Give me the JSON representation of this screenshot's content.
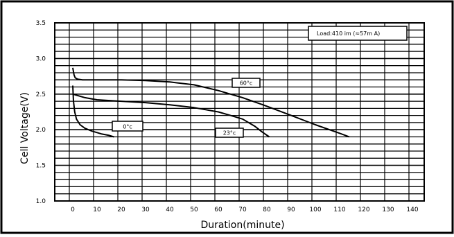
{
  "chart_data": {
    "type": "line",
    "xlabel": "Duration(minute)",
    "ylabel": "Cell Voltage(V)",
    "xlim": [
      0,
      140
    ],
    "ylim": [
      1.0,
      3.5
    ],
    "x_ticks": [
      0,
      10,
      20,
      30,
      40,
      50,
      60,
      70,
      80,
      90,
      100,
      110,
      120,
      130,
      140
    ],
    "y_ticks": [
      1.0,
      1.5,
      2.0,
      2.5,
      3.0,
      3.5
    ],
    "grid": true,
    "legend_text": "Load:410 im (≈57m A)",
    "series": [
      {
        "name": "60°c",
        "x": [
          0,
          0.5,
          1,
          2,
          4,
          10,
          20,
          30,
          40,
          50,
          60,
          70,
          80,
          90,
          100,
          110,
          114
        ],
        "y": [
          2.87,
          2.77,
          2.73,
          2.71,
          2.7,
          2.7,
          2.7,
          2.69,
          2.67,
          2.63,
          2.55,
          2.45,
          2.33,
          2.2,
          2.07,
          1.95,
          1.9
        ]
      },
      {
        "name": "23°c",
        "x": [
          0,
          5,
          10,
          20,
          30,
          40,
          50,
          60,
          65,
          70,
          75,
          78,
          81
        ],
        "y": [
          2.5,
          2.45,
          2.42,
          2.4,
          2.38,
          2.35,
          2.31,
          2.25,
          2.2,
          2.15,
          2.05,
          1.97,
          1.9
        ]
      },
      {
        "name": "0°c",
        "x": [
          0,
          0.3,
          0.8,
          1.5,
          3,
          5,
          8,
          10,
          12,
          15,
          17
        ],
        "y": [
          2.62,
          2.4,
          2.25,
          2.15,
          2.07,
          2.02,
          1.98,
          1.96,
          1.94,
          1.92,
          1.9
        ]
      }
    ],
    "labels": [
      {
        "series": "60°c",
        "text": "60°c"
      },
      {
        "series": "23°c",
        "text": "23°c"
      },
      {
        "series": "0°c",
        "text": "0°c"
      }
    ]
  }
}
